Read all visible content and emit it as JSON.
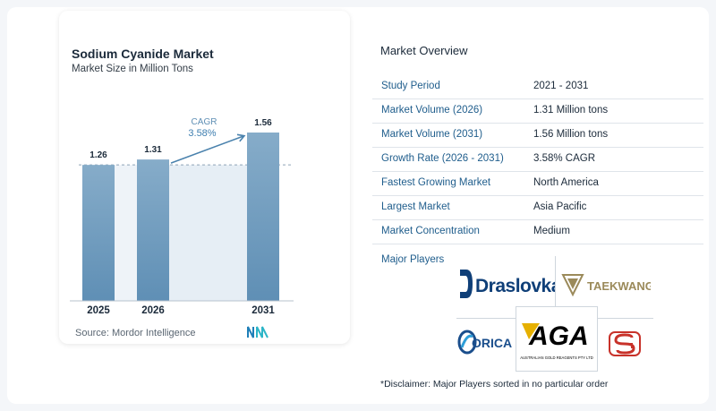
{
  "chart": {
    "title": "Sodium Cyanide Market",
    "subtitle": "Market Size in Million Tons",
    "source": "Source:  Mordor Intelligence",
    "cagr_label": "CAGR",
    "cagr_value": "3.58%"
  },
  "chart_data": {
    "type": "bar",
    "title": "Sodium Cyanide Market",
    "subtitle": "Market Size in Million Tons",
    "categories": [
      "2025",
      "2026",
      "2031"
    ],
    "values": [
      1.26,
      1.31,
      1.56
    ],
    "value_labels": [
      "1.26",
      "1.31",
      "1.56"
    ],
    "ylabel": "",
    "xlabel": "",
    "ylim": [
      0,
      1.56
    ],
    "grid": false,
    "reference_line": 1.26,
    "annotation": {
      "text": "CAGR 3.58%",
      "from": "2026",
      "to": "2031"
    },
    "colors": {
      "bar": "#5f8fb5",
      "bar_top": "#86acc9",
      "shade": "#e6eef5",
      "arrow": "#4a82ad",
      "cagr_label": "#5f8fb5",
      "cagr_value": "#3f7fb0"
    }
  },
  "overview": {
    "title": "Market Overview",
    "rows": [
      {
        "key": "Study Period",
        "value": "2021 - 2031"
      },
      {
        "key": "Market Volume (2026)",
        "value": "1.31 Million tons"
      },
      {
        "key": "Market Volume (2031)",
        "value": "1.56 Million tons"
      },
      {
        "key": "Growth Rate (2026 - 2031)",
        "value": "3.58% CAGR"
      },
      {
        "key": "Fastest Growing Market",
        "value": "North America"
      },
      {
        "key": "Largest Market",
        "value": "Asia Pacific"
      },
      {
        "key": "Market Concentration",
        "value": "Medium"
      }
    ],
    "players_label": "Major Players",
    "players": {
      "draslovka": "Draslovka",
      "taekwang": "TAEKWANG",
      "orica": "ORICA",
      "aga": "AGA",
      "aga_sub": "AUSTRALIAN GOLD REAGENTS PTY LTD"
    },
    "disclaimer": "*Disclaimer: Major Players sorted in no particular order"
  },
  "icons": {
    "mi_logo": "mordor-intelligence-logo-icon",
    "draslovka": "draslovka-logo-icon",
    "taekwang": "taekwang-logo-icon",
    "orica": "orica-logo-icon",
    "aga": "aga-logo-icon",
    "sg": "sg-logo-icon"
  }
}
